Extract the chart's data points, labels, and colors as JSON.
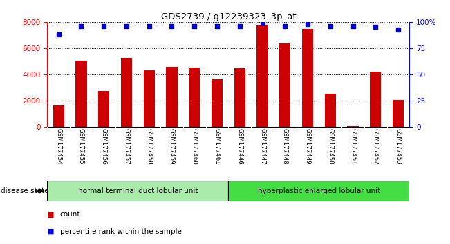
{
  "title": "GDS2739 / g12239323_3p_at",
  "samples": [
    "GSM177454",
    "GSM177455",
    "GSM177456",
    "GSM177457",
    "GSM177458",
    "GSM177459",
    "GSM177460",
    "GSM177461",
    "GSM177446",
    "GSM177447",
    "GSM177448",
    "GSM177449",
    "GSM177450",
    "GSM177451",
    "GSM177452",
    "GSM177453"
  ],
  "counts": [
    1650,
    5050,
    2750,
    5250,
    4300,
    4600,
    4500,
    3650,
    4450,
    7800,
    6350,
    7450,
    2550,
    50,
    4200,
    2050
  ],
  "percentiles": [
    88,
    96,
    96,
    96,
    96,
    96,
    96,
    96,
    96,
    99,
    96,
    98,
    96,
    96,
    95,
    93
  ],
  "bar_color": "#cc0000",
  "dot_color": "#0000cc",
  "ylim_left": [
    0,
    8000
  ],
  "ylim_right": [
    0,
    100
  ],
  "yticks_left": [
    0,
    2000,
    4000,
    6000,
    8000
  ],
  "yticks_right": [
    0,
    25,
    50,
    75,
    100
  ],
  "ytick_labels_right": [
    "0",
    "25",
    "50",
    "75",
    "100%"
  ],
  "group1_label": "normal terminal duct lobular unit",
  "group2_label": "hyperplastic enlarged lobular unit",
  "group1_count": 8,
  "group2_count": 8,
  "disease_state_label": "disease state",
  "legend_count_label": "count",
  "legend_pct_label": "percentile rank within the sample",
  "bg_color": "#ffffff",
  "bar_width": 0.5,
  "group1_color": "#aaeaaa",
  "group2_color": "#44dd44",
  "tick_area_color": "#cccccc"
}
